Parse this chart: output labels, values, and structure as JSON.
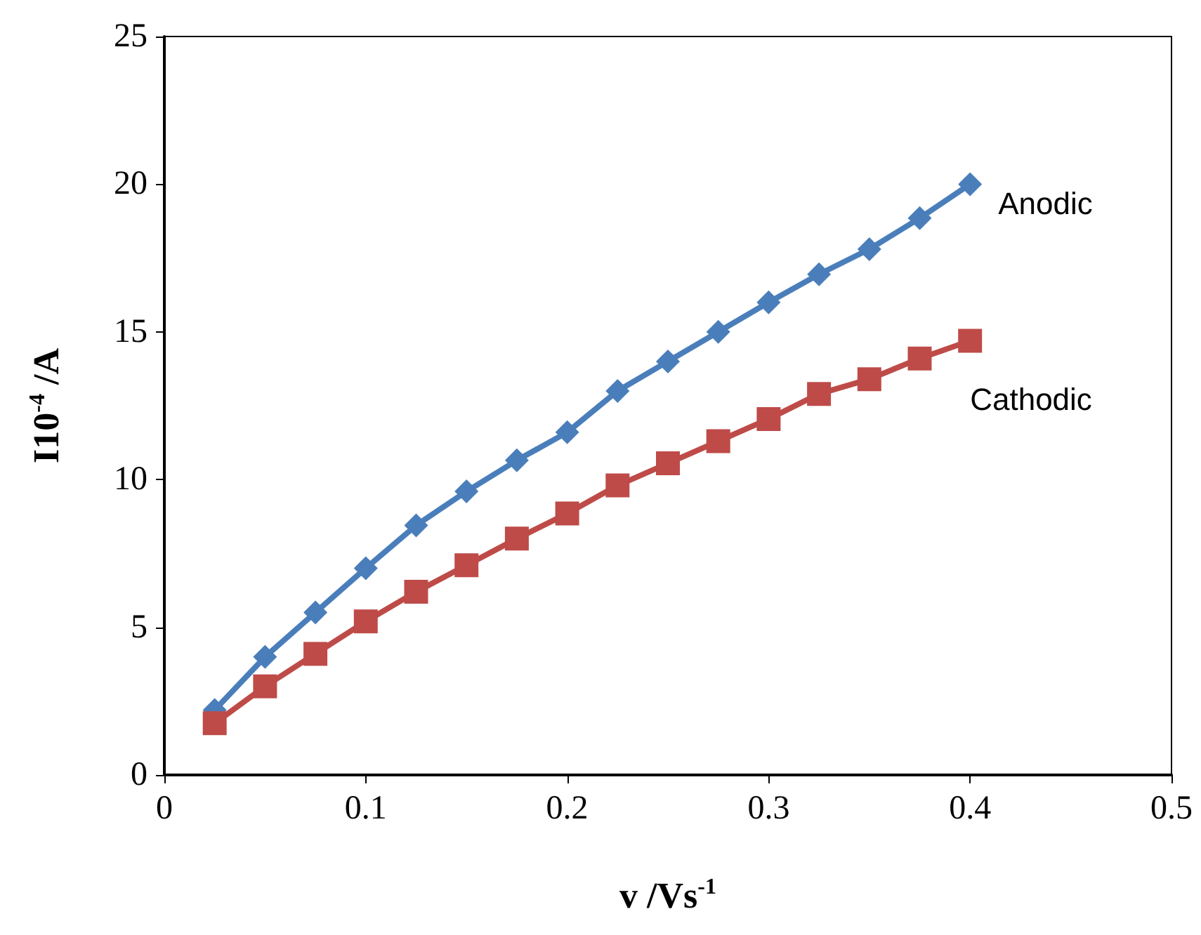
{
  "chart_data": {
    "type": "line",
    "xlabel": "v /Vs$^{-1}$",
    "ylabel": "I10$^{-4}$ /A",
    "x": [
      0.025,
      0.05,
      0.075,
      0.1,
      0.125,
      0.15,
      0.175,
      0.2,
      0.225,
      0.25,
      0.275,
      0.3,
      0.325,
      0.35,
      0.375,
      0.4
    ],
    "series": [
      {
        "name": "Anodic",
        "color": "#4a7ebb",
        "marker": "diamond",
        "values": [
          2.2,
          4.0,
          5.5,
          7.0,
          8.45,
          9.6,
          10.65,
          11.6,
          13.0,
          14.0,
          15.0,
          16.0,
          16.95,
          17.8,
          18.85,
          20.0
        ]
      },
      {
        "name": "Cathodic",
        "color": "#be4b48",
        "marker": "square",
        "values": [
          1.75,
          3.0,
          4.1,
          5.2,
          6.2,
          7.1,
          8.0,
          8.85,
          9.8,
          10.55,
          11.3,
          12.05,
          12.9,
          13.4,
          14.1,
          14.7
        ]
      }
    ],
    "xlim": [
      0,
      0.5
    ],
    "xticks": [
      0,
      0.1,
      0.2,
      0.3,
      0.4,
      0.5
    ],
    "ylim": [
      0,
      25
    ],
    "yticks": [
      0,
      5,
      10,
      15,
      20,
      25
    ],
    "grid": false,
    "legend": false,
    "line_style": "solid"
  }
}
